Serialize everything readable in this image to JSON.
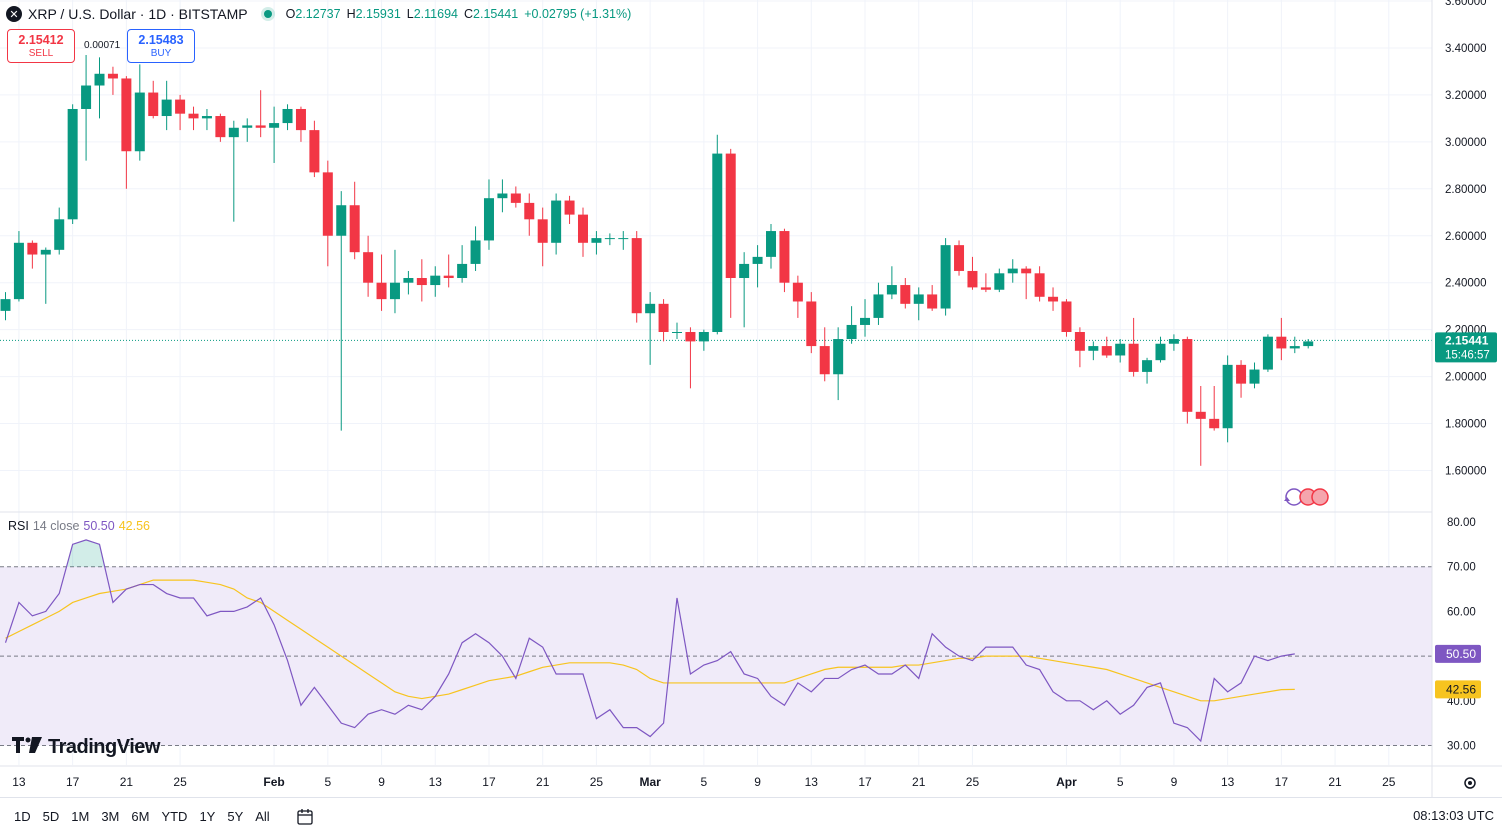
{
  "header": {
    "symbol_icon": "x-icon",
    "title": "XRP / U.S. Dollar · 1D · BITSTAMP",
    "ohlc": [
      {
        "k": "O",
        "v": "2.12737"
      },
      {
        "k": "H",
        "v": "2.15931"
      },
      {
        "k": "L",
        "v": "2.11694"
      },
      {
        "k": "C",
        "v": "2.15441"
      },
      {
        "k": "",
        "v": "+0.02795 (+1.31%)"
      }
    ]
  },
  "trade": {
    "sell_price": "2.15412",
    "sell_label": "SELL",
    "buy_price": "2.15483",
    "buy_label": "BUY",
    "spread": "0.00071"
  },
  "rsi_legend": {
    "name": "RSI",
    "params": "14 close",
    "rsi": "50.50",
    "ma": "42.56"
  },
  "branding": {
    "logo_text": "TradingView"
  },
  "footer": {
    "timeframes": [
      "1D",
      "5D",
      "1M",
      "3M",
      "6M",
      "YTD",
      "1Y",
      "5Y",
      "All"
    ],
    "clock": "08:13:03 UTC"
  },
  "colors": {
    "up": "#089981",
    "down": "#f23645",
    "rsi": "#7e57c2",
    "rsi_ma": "#f7c41f",
    "rsi_band": "#f0ebf9"
  },
  "chart_data": {
    "type": "candlestick",
    "price_axis": {
      "ylim": [
        1.5,
        3.6
      ],
      "ticks": [
        "3.60000",
        "3.40000",
        "3.20000",
        "3.00000",
        "2.80000",
        "2.60000",
        "2.40000",
        "2.20000",
        "2.00000",
        "1.80000",
        "1.60000"
      ],
      "tick_values": [
        3.6,
        3.4,
        3.2,
        3.0,
        2.8,
        2.6,
        2.4,
        2.2,
        2.0,
        1.8,
        1.6
      ],
      "last_price": "2.15441",
      "last_value": 2.15441,
      "countdown": "15:46:57"
    },
    "x_axis": {
      "ticks": [
        "13",
        "17",
        "21",
        "25",
        "Feb",
        "5",
        "9",
        "13",
        "17",
        "21",
        "25",
        "Mar",
        "5",
        "9",
        "13",
        "17",
        "21",
        "25",
        "Apr",
        "5",
        "9",
        "13",
        "17",
        "21",
        "25"
      ],
      "tick_index": [
        1,
        5,
        9,
        13,
        20,
        24,
        28,
        32,
        36,
        40,
        44,
        48,
        52,
        56,
        60,
        64,
        68,
        72,
        79,
        83,
        87,
        91,
        95,
        99,
        103
      ]
    },
    "candles": [
      [
        2.28,
        2.36,
        2.24,
        2.33
      ],
      [
        2.33,
        2.62,
        2.32,
        2.57
      ],
      [
        2.57,
        2.58,
        2.46,
        2.52
      ],
      [
        2.52,
        2.55,
        2.31,
        2.54
      ],
      [
        2.54,
        2.72,
        2.52,
        2.67
      ],
      [
        2.67,
        3.16,
        2.65,
        3.14
      ],
      [
        3.14,
        3.37,
        2.92,
        3.24
      ],
      [
        3.24,
        3.36,
        3.1,
        3.29
      ],
      [
        3.29,
        3.32,
        3.2,
        3.27
      ],
      [
        3.27,
        3.28,
        2.8,
        2.96
      ],
      [
        2.96,
        3.33,
        2.92,
        3.21
      ],
      [
        3.21,
        3.26,
        3.1,
        3.11
      ],
      [
        3.11,
        3.26,
        3.05,
        3.18
      ],
      [
        3.18,
        3.2,
        3.05,
        3.12
      ],
      [
        3.12,
        3.15,
        3.05,
        3.1
      ],
      [
        3.1,
        3.14,
        3.05,
        3.11
      ],
      [
        3.11,
        3.12,
        3.0,
        3.02
      ],
      [
        3.02,
        3.09,
        2.66,
        3.06
      ],
      [
        3.06,
        3.1,
        3.0,
        3.07
      ],
      [
        3.07,
        3.22,
        3.02,
        3.06
      ],
      [
        3.06,
        3.15,
        2.91,
        3.08
      ],
      [
        3.08,
        3.16,
        3.05,
        3.14
      ],
      [
        3.14,
        3.15,
        3.0,
        3.05
      ],
      [
        3.05,
        3.09,
        2.85,
        2.87
      ],
      [
        2.87,
        2.92,
        2.47,
        2.6
      ],
      [
        2.6,
        2.79,
        1.77,
        2.73
      ],
      [
        2.73,
        2.83,
        2.5,
        2.53
      ],
      [
        2.53,
        2.6,
        2.34,
        2.4
      ],
      [
        2.4,
        2.52,
        2.28,
        2.33
      ],
      [
        2.33,
        2.54,
        2.27,
        2.4
      ],
      [
        2.4,
        2.45,
        2.35,
        2.42
      ],
      [
        2.42,
        2.5,
        2.32,
        2.39
      ],
      [
        2.39,
        2.47,
        2.34,
        2.43
      ],
      [
        2.43,
        2.52,
        2.38,
        2.42
      ],
      [
        2.42,
        2.56,
        2.4,
        2.48
      ],
      [
        2.48,
        2.64,
        2.45,
        2.58
      ],
      [
        2.58,
        2.84,
        2.54,
        2.76
      ],
      [
        2.76,
        2.84,
        2.7,
        2.78
      ],
      [
        2.78,
        2.81,
        2.72,
        2.74
      ],
      [
        2.74,
        2.78,
        2.6,
        2.67
      ],
      [
        2.67,
        2.72,
        2.47,
        2.57
      ],
      [
        2.57,
        2.78,
        2.52,
        2.75
      ],
      [
        2.75,
        2.77,
        2.65,
        2.69
      ],
      [
        2.69,
        2.72,
        2.51,
        2.57
      ],
      [
        2.57,
        2.62,
        2.52,
        2.59
      ],
      [
        2.59,
        2.61,
        2.56,
        2.59
      ],
      [
        2.59,
        2.62,
        2.54,
        2.59
      ],
      [
        2.59,
        2.62,
        2.23,
        2.27
      ],
      [
        2.27,
        2.36,
        2.05,
        2.31
      ],
      [
        2.31,
        2.33,
        2.15,
        2.19
      ],
      [
        2.19,
        2.23,
        2.16,
        2.19
      ],
      [
        2.19,
        2.21,
        1.95,
        2.15
      ],
      [
        2.15,
        2.2,
        2.11,
        2.19
      ],
      [
        2.19,
        3.03,
        2.18,
        2.95
      ],
      [
        2.95,
        2.97,
        2.25,
        2.42
      ],
      [
        2.42,
        2.53,
        2.21,
        2.48
      ],
      [
        2.48,
        2.56,
        2.38,
        2.51
      ],
      [
        2.51,
        2.65,
        2.46,
        2.62
      ],
      [
        2.62,
        2.63,
        2.36,
        2.4
      ],
      [
        2.4,
        2.43,
        2.25,
        2.32
      ],
      [
        2.32,
        2.36,
        2.1,
        2.13
      ],
      [
        2.13,
        2.21,
        1.98,
        2.01
      ],
      [
        2.01,
        2.21,
        1.9,
        2.16
      ],
      [
        2.16,
        2.3,
        2.14,
        2.22
      ],
      [
        2.22,
        2.33,
        2.17,
        2.25
      ],
      [
        2.25,
        2.4,
        2.22,
        2.35
      ],
      [
        2.35,
        2.47,
        2.33,
        2.39
      ],
      [
        2.39,
        2.42,
        2.29,
        2.31
      ],
      [
        2.31,
        2.38,
        2.24,
        2.35
      ],
      [
        2.35,
        2.39,
        2.28,
        2.29
      ],
      [
        2.29,
        2.59,
        2.26,
        2.56
      ],
      [
        2.56,
        2.58,
        2.43,
        2.45
      ],
      [
        2.45,
        2.51,
        2.37,
        2.38
      ],
      [
        2.38,
        2.44,
        2.36,
        2.37
      ],
      [
        2.37,
        2.46,
        2.36,
        2.44
      ],
      [
        2.44,
        2.5,
        2.4,
        2.46
      ],
      [
        2.46,
        2.47,
        2.33,
        2.44
      ],
      [
        2.44,
        2.47,
        2.32,
        2.34
      ],
      [
        2.34,
        2.38,
        2.28,
        2.32
      ],
      [
        2.32,
        2.33,
        2.17,
        2.19
      ],
      [
        2.19,
        2.21,
        2.04,
        2.11
      ],
      [
        2.11,
        2.15,
        2.07,
        2.13
      ],
      [
        2.13,
        2.17,
        2.08,
        2.09
      ],
      [
        2.09,
        2.16,
        2.06,
        2.14
      ],
      [
        2.14,
        2.25,
        2.0,
        2.02
      ],
      [
        2.02,
        2.08,
        1.97,
        2.07
      ],
      [
        2.07,
        2.17,
        2.06,
        2.14
      ],
      [
        2.14,
        2.18,
        2.11,
        2.16
      ],
      [
        2.16,
        2.17,
        1.8,
        1.85
      ],
      [
        1.85,
        1.96,
        1.62,
        1.82
      ],
      [
        1.82,
        1.96,
        1.77,
        1.78
      ],
      [
        1.78,
        2.09,
        1.72,
        2.05
      ],
      [
        2.05,
        2.07,
        1.91,
        1.97
      ],
      [
        1.97,
        2.06,
        1.95,
        2.03
      ],
      [
        2.03,
        2.18,
        2.02,
        2.17
      ],
      [
        2.17,
        2.25,
        2.07,
        2.12
      ],
      [
        2.12,
        2.17,
        2.1,
        2.13
      ],
      [
        2.13,
        2.16,
        2.12,
        2.15
      ]
    ],
    "rsi": {
      "ylim": [
        27,
        82
      ],
      "ticks": [
        "80.00",
        "70.00",
        "60.00",
        "50.00",
        "40.00",
        "30.00"
      ],
      "tick_values": [
        80,
        70,
        60,
        50,
        40,
        30
      ],
      "bands": [
        30,
        50,
        70
      ],
      "rsi_values": [
        53,
        62,
        59,
        60,
        64,
        75,
        76,
        75,
        62,
        65,
        66,
        66,
        64,
        63,
        63,
        59,
        60,
        60,
        61,
        63,
        57,
        49,
        39,
        43,
        39,
        35,
        34,
        37,
        38,
        37,
        39,
        38,
        41,
        46,
        53,
        55,
        53,
        50,
        45,
        54,
        52,
        46,
        46,
        46,
        36,
        38,
        34,
        34,
        32,
        35,
        63,
        46,
        48,
        49,
        51,
        46,
        45,
        41,
        39,
        44,
        42,
        45,
        45,
        47,
        48,
        46,
        46,
        48,
        45,
        55,
        52,
        50,
        49,
        52,
        52,
        52,
        48,
        47,
        42,
        40,
        40,
        38,
        40,
        37,
        39,
        43,
        44,
        35,
        34,
        31,
        45,
        42,
        44,
        50,
        49,
        50,
        50.5
      ],
      "ma_values": [
        54,
        55.5,
        57,
        58.5,
        60,
        62,
        63,
        64,
        64.5,
        65,
        66,
        67,
        67,
        67,
        67,
        66.5,
        66,
        65,
        63,
        62,
        60,
        58,
        56,
        54,
        52,
        50,
        48,
        46,
        44,
        42,
        41,
        40.5,
        41,
        41.5,
        42.5,
        43.5,
        44.5,
        45,
        45.5,
        46.5,
        47.5,
        48,
        48.5,
        48.5,
        48.5,
        48.5,
        48,
        47,
        45,
        44,
        44,
        44,
        44,
        44,
        44,
        44,
        44,
        44,
        44,
        45,
        46,
        47,
        47.5,
        47.5,
        47.5,
        47.5,
        47.5,
        48,
        48,
        48.5,
        49,
        49.5,
        49.5,
        50,
        50,
        50,
        50,
        49.5,
        49,
        48.5,
        48,
        47.5,
        47,
        46,
        45,
        44,
        43,
        42,
        41,
        40,
        40,
        40.5,
        41,
        41.5,
        42,
        42.5,
        42.56
      ],
      "last_rsi": "50.50",
      "last_ma": "42.56"
    }
  }
}
